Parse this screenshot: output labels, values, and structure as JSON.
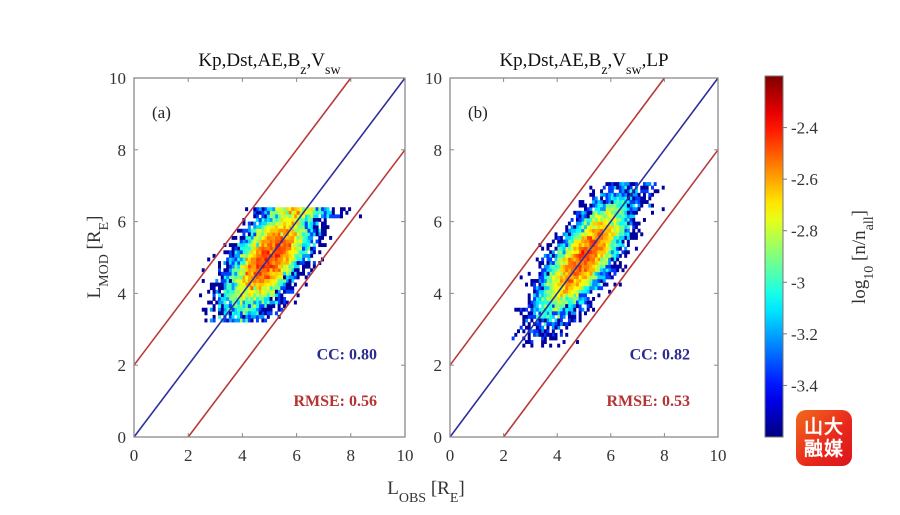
{
  "chart_data": [
    {
      "type": "heatmap",
      "panel_label": "(a)",
      "title": "Kp,Dst,AE,B_z,V_sw",
      "title_parts": [
        {
          "t": "Kp,Dst,AE,B"
        },
        {
          "t": "z",
          "sub": true
        },
        {
          "t": ",V"
        },
        {
          "t": "sw",
          "sub": true
        }
      ],
      "xlabel": "L_OBS [R_E]",
      "ylabel": "L_MOD [R_E]",
      "xlim": [
        0,
        10
      ],
      "ylim": [
        0,
        10
      ],
      "xticks": [
        0,
        2,
        4,
        6,
        8,
        10
      ],
      "yticks": [
        0,
        2,
        4,
        6,
        8,
        10
      ],
      "reference_lines": [
        {
          "name": "y=x",
          "color": "#2f2f9c",
          "offset": 0
        },
        {
          "name": "y=x+2",
          "color": "#b83a3a",
          "offset": 2
        },
        {
          "name": "y=x-2",
          "color": "#b83a3a",
          "offset": -2
        }
      ],
      "cloud": {
        "center": [
          5.0,
          5.0
        ],
        "x_range": [
          2.3,
          8.6
        ],
        "y_range": [
          3.0,
          6.4
        ],
        "major_sd": 1.0,
        "minor_sd": 0.45,
        "y_cap": 6.4,
        "y_floor": 3.2
      },
      "stats": {
        "cc_label": "CC: 0.80",
        "rmse_label": "RMSE: 0.56",
        "cc": 0.8,
        "rmse": 0.56
      }
    },
    {
      "type": "heatmap",
      "panel_label": "(b)",
      "title": "Kp,Dst,AE,B_z,V_sw,LP",
      "title_parts": [
        {
          "t": "Kp,Dst,AE,B"
        },
        {
          "t": "z",
          "sub": true
        },
        {
          "t": ",V"
        },
        {
          "t": "sw",
          "sub": true
        },
        {
          "t": ",LP"
        }
      ],
      "xlabel": "L_OBS [R_E]",
      "ylabel": "",
      "xlim": [
        0,
        10
      ],
      "ylim": [
        0,
        10
      ],
      "xticks": [
        0,
        2,
        4,
        6,
        8,
        10
      ],
      "yticks": [
        0,
        2,
        4,
        6,
        8,
        10
      ],
      "reference_lines": [
        {
          "name": "y=x",
          "color": "#2f2f9c",
          "offset": 0
        },
        {
          "name": "y=x+2",
          "color": "#b83a3a",
          "offset": 2
        },
        {
          "name": "y=x-2",
          "color": "#b83a3a",
          "offset": -2
        }
      ],
      "cloud": {
        "center": [
          5.0,
          5.0
        ],
        "x_range": [
          2.3,
          8.0
        ],
        "y_range": [
          2.5,
          7.1
        ],
        "major_sd": 1.05,
        "minor_sd": 0.38,
        "y_cap": 7.1,
        "y_floor": 2.5
      },
      "stats": {
        "cc_label": "CC: 0.82",
        "rmse_label": "RMSE: 0.53",
        "cc": 0.82,
        "rmse": 0.53
      }
    }
  ],
  "colorbar": {
    "label": "log10 [n/n_all]",
    "range": [
      -3.6,
      -2.2
    ],
    "ticks": [
      -2.4,
      -2.6,
      -2.8,
      -3,
      -3.2,
      -3.4
    ],
    "tick_labels": [
      "-2.4",
      "-2.6",
      "-2.8",
      "-3",
      "-3.2",
      "-3.4"
    ],
    "colormap": "jet"
  },
  "shared_xlabel": {
    "main": "L",
    "sub1": "OBS",
    "mid": " [R",
    "sub2": "E",
    "end": "]"
  },
  "ylabel_parts": {
    "main": "L",
    "sub1": "MOD",
    "mid": " [R",
    "sub2": "E",
    "end": "]"
  },
  "colorbar_label_parts": {
    "main": "log",
    "sub1": "10",
    "mid": " [n/n",
    "sub2": "all",
    "end": "]"
  },
  "stat_colors": {
    "cc": "#2b2b8f",
    "rmse": "#b53333"
  },
  "watermark": {
    "line1": "山大",
    "line2": "融媒"
  }
}
